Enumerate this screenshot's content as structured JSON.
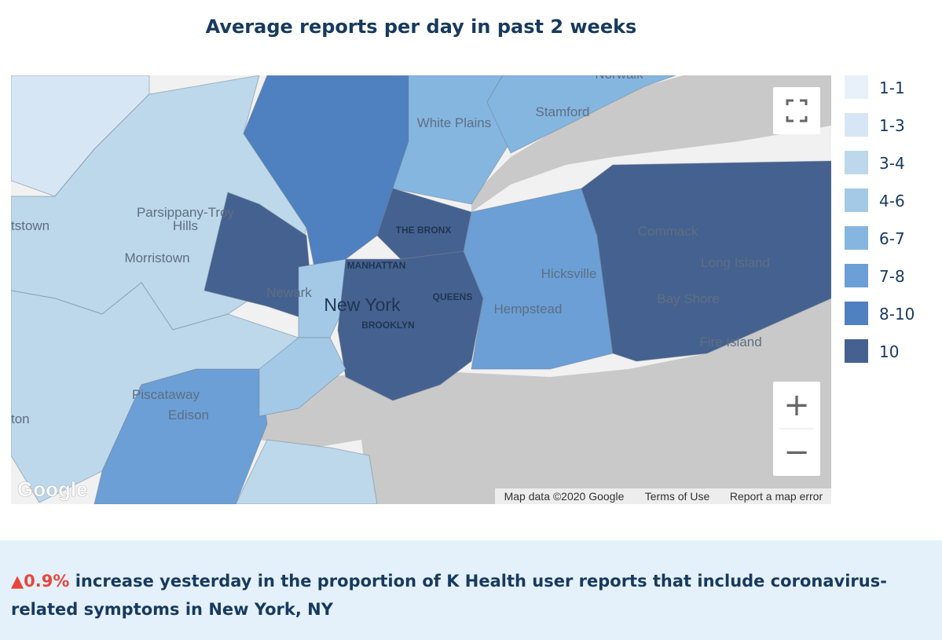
{
  "header": {
    "title": "Average reports per day in past 2 weeks"
  },
  "map": {
    "labels": [
      "Norwalk",
      "White Plains",
      "Stamford",
      "Parsippany-Troy",
      "Hills",
      "tstown",
      "Morristown",
      "THE BRONX",
      "MANHATTAN",
      "Newark",
      "New York",
      "QUEENS",
      "BROOKLYN",
      "Hempstead",
      "Hicksville",
      "Commack",
      "Long Island",
      "Bay Shore",
      "Fire Island",
      "Piscataway",
      "Edison",
      "ton"
    ],
    "logo": "Google",
    "attribution": [
      "Map data ©2020 Google",
      "Terms of Use",
      "Report a map error"
    ],
    "zoom_in": "+",
    "zoom_out": "−"
  },
  "legend": [
    {
      "label": "1-1",
      "color": "#e8f1fa"
    },
    {
      "label": "1-3",
      "color": "#d6e6f4"
    },
    {
      "label": "3-4",
      "color": "#bcd8ea"
    },
    {
      "label": "4-6",
      "color": "#a3c9e7"
    },
    {
      "label": "6-7",
      "color": "#85b6e0"
    },
    {
      "label": "7-8",
      "color": "#6b9fd6"
    },
    {
      "label": "8-10",
      "color": "#4f80c0"
    },
    {
      "label": "10",
      "color": "#45618f"
    }
  ],
  "footer": {
    "change": "▲0.9%",
    "text_line1": "increase yesterday in the proportion of K Health user reports that include coronavirus-",
    "text_line2": "related symptoms in New York, NY"
  }
}
